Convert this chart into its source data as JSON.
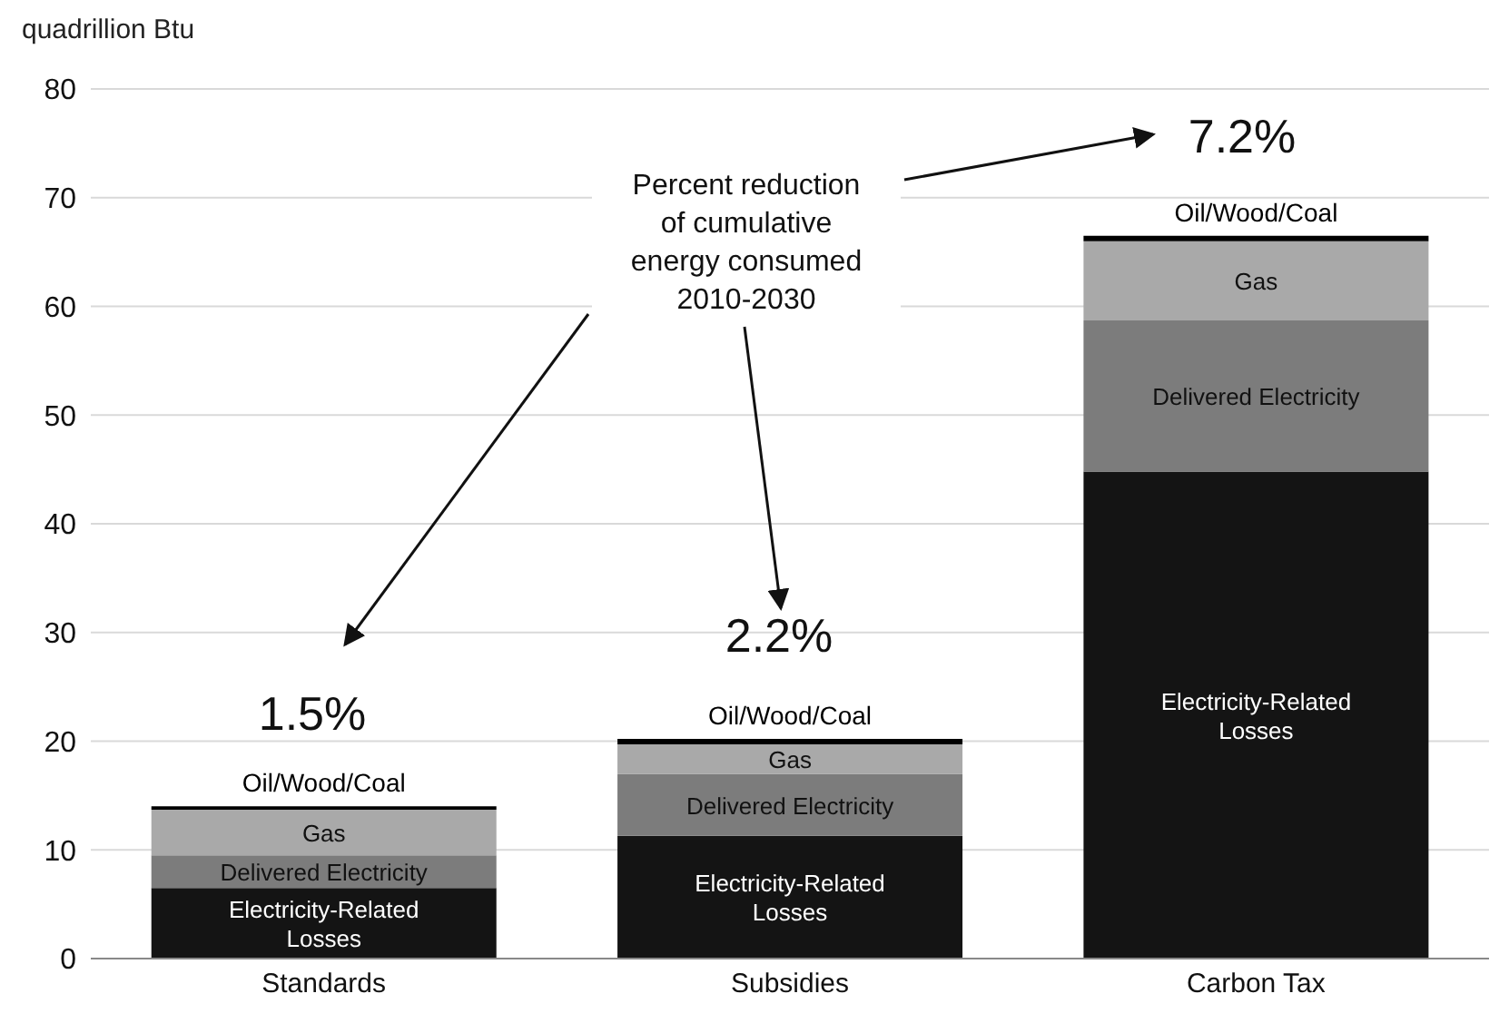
{
  "chart_data": {
    "type": "bar",
    "stacked": true,
    "ylabel": "quadrillion Btu",
    "categories": [
      "Standards",
      "Subsidies",
      "Carbon Tax"
    ],
    "series": [
      {
        "name": "Electricity-Related Losses",
        "color": "#141414",
        "values": [
          6.5,
          11.3,
          44.8
        ]
      },
      {
        "name": "Delivered Electricity",
        "color": "#7c7c7c",
        "values": [
          3.0,
          5.7,
          13.9
        ]
      },
      {
        "name": "Gas",
        "color": "#a9a9a9",
        "values": [
          4.2,
          2.7,
          7.3
        ]
      },
      {
        "name": "Oil/Wood/Coal",
        "color": "#000000",
        "values": [
          0.3,
          0.5,
          0.5
        ]
      }
    ],
    "ylim": [
      0,
      80
    ],
    "yticks": [
      0,
      10,
      20,
      30,
      40,
      50,
      60,
      70,
      80
    ],
    "grid": "y",
    "legend": false,
    "annotations": [
      "1.5%",
      "2.2%",
      "7.2%",
      "Percent reduction\nof cumulative\nenergy consumed\n2010-2030"
    ]
  }
}
